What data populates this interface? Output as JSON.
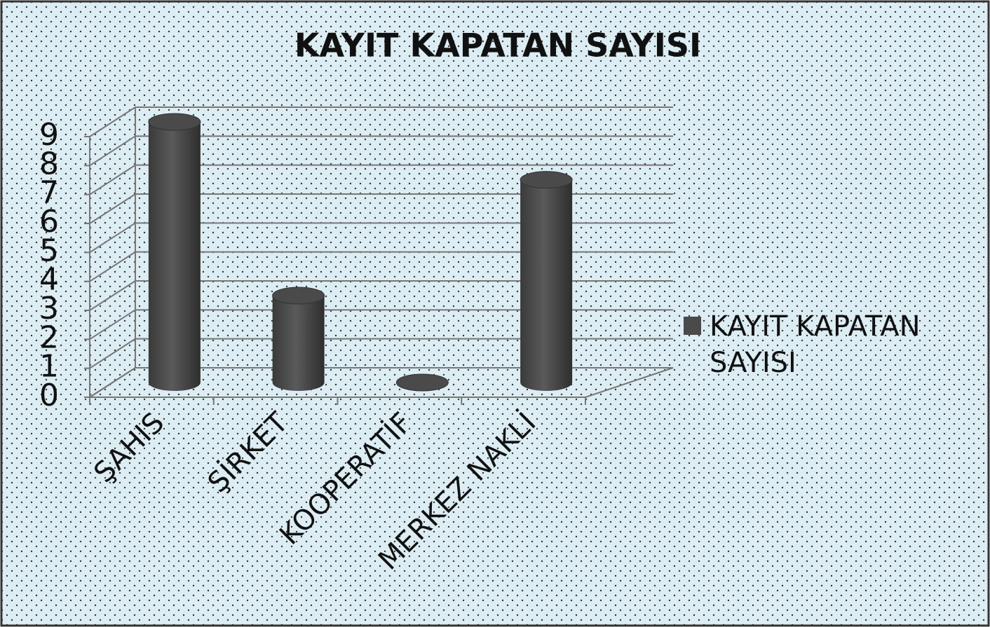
{
  "chart_data": {
    "type": "bar",
    "title": "KAYIT KAPATAN SAYISI",
    "categories": [
      "ŞAHIS",
      "ŞİRKET",
      "KOOPERATİF",
      "MERKEZ NAKLİ"
    ],
    "series": [
      {
        "name": "KAYIT KAPATAN SAYISI",
        "color": "#4a4a4a",
        "values": [
          9,
          3,
          0,
          7
        ]
      }
    ],
    "ylim": [
      0,
      9
    ],
    "yticks": [
      0,
      1,
      2,
      3,
      4,
      5,
      6,
      7,
      8,
      9
    ],
    "grid": true,
    "legend": "right"
  }
}
